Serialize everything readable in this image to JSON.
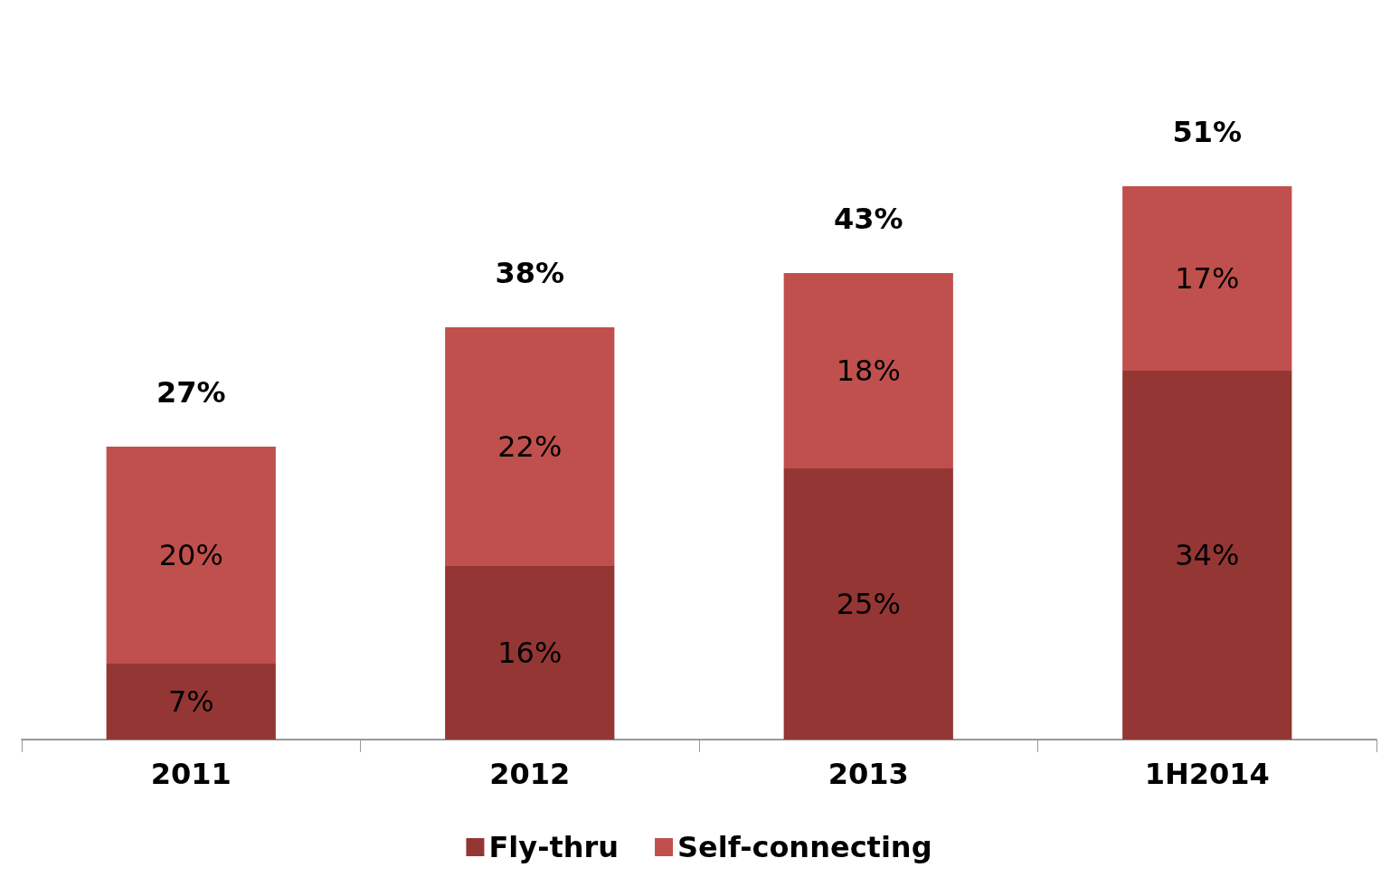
{
  "chart_data": {
    "type": "bar",
    "stacked": true,
    "categories": [
      "2011",
      "2012",
      "2013",
      "1H2014"
    ],
    "series": [
      {
        "name": "Fly-thru",
        "color": "#943634",
        "values": [
          7,
          16,
          25,
          34
        ],
        "value_labels": [
          "7%",
          "16%",
          "25%",
          "34%"
        ]
      },
      {
        "name": "Self-connecting",
        "color": "#c0504d",
        "values": [
          20,
          22,
          18,
          17
        ],
        "value_labels": [
          "20%",
          "22%",
          "18%",
          "17%"
        ]
      }
    ],
    "totals": [
      "27%",
      "38%",
      "43%",
      "51%"
    ],
    "legend": "bottom"
  }
}
